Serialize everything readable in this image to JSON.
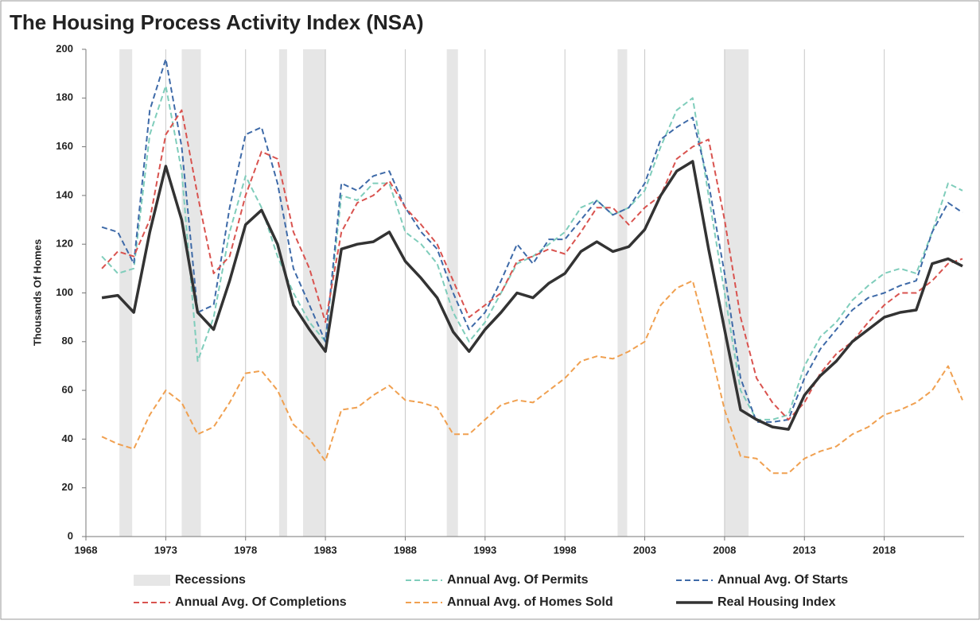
{
  "chart_data": {
    "type": "line",
    "title": "The Housing Process Activity Index (NSA)",
    "ylabel": "Thousands Of Homes",
    "xlim": [
      1968,
      2023
    ],
    "xticks": [
      1968,
      1973,
      1978,
      1983,
      1988,
      1993,
      1998,
      2003,
      2008,
      2013,
      2018
    ],
    "ylim": [
      0,
      200
    ],
    "yticks": [
      0,
      20,
      40,
      60,
      80,
      100,
      120,
      140,
      160,
      180,
      200
    ],
    "grid": "x",
    "recessions": {
      "name": "Recessions",
      "color": "#e6e6e6",
      "spans": [
        [
          1970.1,
          1970.9
        ],
        [
          1974.0,
          1975.2
        ],
        [
          1980.1,
          1980.6
        ],
        [
          1981.6,
          1983.0
        ],
        [
          1990.6,
          1991.3
        ],
        [
          2001.3,
          2001.9
        ],
        [
          2008.0,
          2009.5
        ]
      ]
    },
    "x": [
      1969,
      1970,
      1971,
      1972,
      1973,
      1974,
      1975,
      1976,
      1977,
      1978,
      1979,
      1980,
      1981,
      1982,
      1983,
      1984,
      1985,
      1986,
      1987,
      1988,
      1989,
      1990,
      1991,
      1992,
      1993,
      1994,
      1995,
      1996,
      1997,
      1998,
      1999,
      2000,
      2001,
      2002,
      2003,
      2004,
      2005,
      2006,
      2007,
      2008,
      2009,
      2010,
      2011,
      2012,
      2013,
      2014,
      2015,
      2016,
      2017,
      2018,
      2019,
      2020,
      2021,
      2022,
      2022.9
    ],
    "series": [
      {
        "name": "Annual Avg. Of Permits",
        "color": "#7fcdbb",
        "dashed": true,
        "values": [
          115,
          108,
          110,
          165,
          185,
          150,
          72,
          90,
          125,
          148,
          135,
          115,
          100,
          88,
          80,
          140,
          138,
          145,
          145,
          125,
          120,
          112,
          92,
          80,
          88,
          100,
          112,
          115,
          120,
          125,
          135,
          138,
          132,
          135,
          142,
          160,
          175,
          180,
          140,
          100,
          60,
          48,
          48,
          50,
          70,
          82,
          88,
          97,
          103,
          108,
          110,
          108,
          125,
          145,
          142
        ]
      },
      {
        "name": "Annual Avg. Of Starts",
        "color": "#3e6aa8",
        "dashed": true,
        "values": [
          127,
          125,
          112,
          175,
          196,
          160,
          92,
          95,
          135,
          165,
          168,
          145,
          110,
          95,
          80,
          145,
          142,
          148,
          150,
          135,
          125,
          118,
          100,
          85,
          92,
          105,
          120,
          112,
          122,
          122,
          130,
          138,
          132,
          135,
          145,
          163,
          168,
          172,
          145,
          108,
          65,
          47,
          47,
          48,
          65,
          77,
          85,
          93,
          98,
          100,
          103,
          105,
          125,
          137,
          133
        ]
      },
      {
        "name": "Annual Avg. Of Completions",
        "color": "#d9534f",
        "dashed": true,
        "values": [
          110,
          117,
          115,
          130,
          165,
          175,
          140,
          108,
          115,
          140,
          158,
          155,
          125,
          110,
          88,
          125,
          137,
          140,
          146,
          135,
          128,
          120,
          105,
          90,
          95,
          100,
          113,
          115,
          118,
          116,
          125,
          135,
          135,
          128,
          135,
          140,
          155,
          160,
          163,
          130,
          90,
          65,
          55,
          48,
          55,
          67,
          75,
          80,
          88,
          95,
          100,
          100,
          105,
          112,
          114
        ]
      },
      {
        "name": "Annual Avg. of Homes Sold",
        "color": "#f0a050",
        "dashed": true,
        "values": [
          41,
          38,
          36,
          50,
          60,
          55,
          42,
          45,
          55,
          67,
          68,
          60,
          46,
          40,
          31,
          52,
          53,
          58,
          62,
          56,
          55,
          53,
          42,
          42,
          48,
          54,
          56,
          55,
          60,
          65,
          72,
          74,
          73,
          76,
          80,
          95,
          102,
          105,
          80,
          52,
          33,
          32,
          26,
          26,
          32,
          35,
          37,
          42,
          45,
          50,
          52,
          55,
          60,
          70,
          56
        ]
      },
      {
        "name": "Real Housing Index",
        "color": "#333333",
        "dashed": false,
        "values": [
          98,
          99,
          92,
          125,
          152,
          130,
          92,
          85,
          105,
          128,
          134,
          120,
          95,
          85,
          76,
          118,
          120,
          121,
          125,
          113,
          106,
          98,
          84,
          76,
          85,
          92,
          100,
          98,
          104,
          108,
          117,
          121,
          117,
          119,
          126,
          140,
          150,
          154,
          118,
          85,
          52,
          48,
          45,
          44,
          58,
          66,
          72,
          80,
          85,
          90,
          92,
          93,
          112,
          114,
          111
        ]
      }
    ]
  }
}
